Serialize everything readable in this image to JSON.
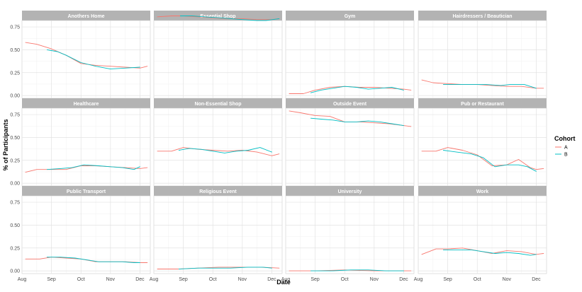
{
  "chart_data": {
    "type": "line",
    "xlabel": "Date",
    "ylabel": "% of Participants",
    "x_ticks": [
      "Aug",
      "Sep",
      "Oct",
      "Nov",
      "Dec"
    ],
    "y_ticks": [
      "0.00",
      "0.25",
      "0.50",
      "0.75"
    ],
    "ylim": [
      -0.03,
      0.82
    ],
    "xlim": [
      0,
      4.35
    ],
    "grid": true,
    "legend": {
      "title": "Cohort",
      "placement": "right",
      "entries": [
        {
          "name": "A",
          "color": "#F8766D"
        },
        {
          "name": "B",
          "color": "#00BFC4"
        }
      ]
    },
    "panels": [
      {
        "title": "Anothers Home",
        "series": [
          {
            "name": "A",
            "points": [
              [
                0.12,
                0.58
              ],
              [
                0.5,
                0.56
              ],
              [
                1.0,
                0.51
              ],
              [
                1.5,
                0.44
              ],
              [
                2.0,
                0.35
              ],
              [
                2.5,
                0.33
              ],
              [
                3.0,
                0.32
              ],
              [
                3.5,
                0.31
              ],
              [
                4.0,
                0.3
              ],
              [
                4.25,
                0.32
              ]
            ]
          },
          {
            "name": "B",
            "points": [
              [
                0.85,
                0.5
              ],
              [
                1.2,
                0.48
              ],
              [
                1.5,
                0.44
              ],
              [
                2.0,
                0.36
              ],
              [
                2.5,
                0.32
              ],
              [
                3.0,
                0.29
              ],
              [
                3.5,
                0.3
              ],
              [
                4.0,
                0.31
              ]
            ]
          }
        ]
      },
      {
        "title": "Essential Shop",
        "series": [
          {
            "name": "A",
            "points": [
              [
                0.12,
                0.86
              ],
              [
                0.6,
                0.87
              ],
              [
                1.0,
                0.87
              ],
              [
                1.5,
                0.86
              ],
              [
                2.0,
                0.85
              ],
              [
                2.5,
                0.84
              ],
              [
                3.0,
                0.84
              ],
              [
                3.5,
                0.83
              ],
              [
                4.0,
                0.83
              ],
              [
                4.25,
                0.84
              ]
            ]
          },
          {
            "name": "B",
            "points": [
              [
                0.9,
                0.87
              ],
              [
                1.3,
                0.87
              ],
              [
                1.7,
                0.86
              ],
              [
                2.2,
                0.85
              ],
              [
                2.6,
                0.84
              ],
              [
                3.0,
                0.83
              ],
              [
                3.5,
                0.82
              ],
              [
                3.8,
                0.82
              ],
              [
                4.25,
                0.84
              ]
            ]
          }
        ]
      },
      {
        "title": "Gym",
        "series": [
          {
            "name": "A",
            "points": [
              [
                0.12,
                0.02
              ],
              [
                0.6,
                0.02
              ],
              [
                1.0,
                0.06
              ],
              [
                1.5,
                0.09
              ],
              [
                2.0,
                0.1
              ],
              [
                2.5,
                0.09
              ],
              [
                3.0,
                0.09
              ],
              [
                3.5,
                0.08
              ],
              [
                4.0,
                0.07
              ],
              [
                4.25,
                0.06
              ]
            ]
          },
          {
            "name": "B",
            "points": [
              [
                0.85,
                0.03
              ],
              [
                1.2,
                0.06
              ],
              [
                1.6,
                0.08
              ],
              [
                2.0,
                0.1
              ],
              [
                2.4,
                0.09
              ],
              [
                2.8,
                0.07
              ],
              [
                3.2,
                0.08
              ],
              [
                3.6,
                0.09
              ],
              [
                4.0,
                0.06
              ]
            ]
          }
        ]
      },
      {
        "title": "Hairdressers / Beautician",
        "series": [
          {
            "name": "A",
            "points": [
              [
                0.12,
                0.17
              ],
              [
                0.5,
                0.14
              ],
              [
                1.0,
                0.13
              ],
              [
                1.5,
                0.12
              ],
              [
                2.0,
                0.12
              ],
              [
                2.5,
                0.11
              ],
              [
                3.0,
                0.1
              ],
              [
                3.5,
                0.1
              ],
              [
                4.0,
                0.08
              ],
              [
                4.25,
                0.08
              ]
            ]
          },
          {
            "name": "B",
            "points": [
              [
                0.85,
                0.12
              ],
              [
                1.3,
                0.12
              ],
              [
                1.8,
                0.12
              ],
              [
                2.3,
                0.12
              ],
              [
                2.8,
                0.11
              ],
              [
                3.1,
                0.12
              ],
              [
                3.6,
                0.12
              ],
              [
                4.0,
                0.08
              ]
            ]
          }
        ]
      },
      {
        "title": "Healthcare",
        "series": [
          {
            "name": "A",
            "points": [
              [
                0.12,
                0.12
              ],
              [
                0.5,
                0.15
              ],
              [
                1.0,
                0.15
              ],
              [
                1.5,
                0.15
              ],
              [
                2.0,
                0.19
              ],
              [
                2.5,
                0.19
              ],
              [
                3.0,
                0.18
              ],
              [
                3.5,
                0.17
              ],
              [
                4.0,
                0.16
              ],
              [
                4.25,
                0.17
              ]
            ]
          },
          {
            "name": "B",
            "points": [
              [
                0.85,
                0.15
              ],
              [
                1.3,
                0.16
              ],
              [
                1.7,
                0.17
              ],
              [
                2.1,
                0.2
              ],
              [
                2.6,
                0.19
              ],
              [
                3.0,
                0.18
              ],
              [
                3.4,
                0.17
              ],
              [
                3.8,
                0.15
              ],
              [
                4.0,
                0.18
              ]
            ]
          }
        ]
      },
      {
        "title": "Non-Essential Shop",
        "series": [
          {
            "name": "A",
            "points": [
              [
                0.12,
                0.35
              ],
              [
                0.6,
                0.35
              ],
              [
                1.0,
                0.39
              ],
              [
                1.5,
                0.37
              ],
              [
                2.0,
                0.36
              ],
              [
                2.5,
                0.35
              ],
              [
                3.0,
                0.36
              ],
              [
                3.5,
                0.34
              ],
              [
                4.0,
                0.3
              ],
              [
                4.25,
                0.32
              ]
            ]
          },
          {
            "name": "B",
            "points": [
              [
                0.85,
                0.36
              ],
              [
                1.2,
                0.38
              ],
              [
                1.6,
                0.37
              ],
              [
                2.0,
                0.35
              ],
              [
                2.4,
                0.33
              ],
              [
                2.8,
                0.35
              ],
              [
                3.2,
                0.36
              ],
              [
                3.6,
                0.39
              ],
              [
                4.0,
                0.34
              ]
            ]
          }
        ]
      },
      {
        "title": "Outside Event",
        "series": [
          {
            "name": "A",
            "points": [
              [
                0.12,
                0.79
              ],
              [
                0.5,
                0.77
              ],
              [
                1.0,
                0.74
              ],
              [
                1.5,
                0.73
              ],
              [
                2.0,
                0.67
              ],
              [
                2.5,
                0.67
              ],
              [
                3.0,
                0.66
              ],
              [
                3.5,
                0.65
              ],
              [
                4.0,
                0.63
              ],
              [
                4.25,
                0.62
              ]
            ]
          },
          {
            "name": "B",
            "points": [
              [
                0.85,
                0.71
              ],
              [
                1.2,
                0.7
              ],
              [
                1.6,
                0.69
              ],
              [
                2.0,
                0.67
              ],
              [
                2.4,
                0.67
              ],
              [
                2.8,
                0.68
              ],
              [
                3.2,
                0.67
              ],
              [
                3.6,
                0.65
              ],
              [
                4.0,
                0.63
              ]
            ]
          }
        ]
      },
      {
        "title": "Pub or Restaurant",
        "series": [
          {
            "name": "A",
            "points": [
              [
                0.12,
                0.35
              ],
              [
                0.6,
                0.35
              ],
              [
                1.0,
                0.39
              ],
              [
                1.5,
                0.36
              ],
              [
                2.0,
                0.31
              ],
              [
                2.5,
                0.19
              ],
              [
                3.0,
                0.2
              ],
              [
                3.4,
                0.26
              ],
              [
                3.8,
                0.17
              ],
              [
                4.0,
                0.15
              ],
              [
                4.25,
                0.16
              ]
            ]
          },
          {
            "name": "B",
            "points": [
              [
                0.85,
                0.36
              ],
              [
                1.3,
                0.34
              ],
              [
                1.8,
                0.32
              ],
              [
                2.2,
                0.28
              ],
              [
                2.6,
                0.18
              ],
              [
                3.0,
                0.2
              ],
              [
                3.4,
                0.2
              ],
              [
                3.7,
                0.18
              ],
              [
                4.0,
                0.13
              ]
            ]
          }
        ]
      },
      {
        "title": "Public Transport",
        "series": [
          {
            "name": "A",
            "points": [
              [
                0.12,
                0.13
              ],
              [
                0.6,
                0.13
              ],
              [
                1.0,
                0.15
              ],
              [
                1.5,
                0.14
              ],
              [
                2.0,
                0.13
              ],
              [
                2.5,
                0.1
              ],
              [
                3.0,
                0.1
              ],
              [
                3.5,
                0.1
              ],
              [
                4.0,
                0.09
              ],
              [
                4.25,
                0.09
              ]
            ]
          },
          {
            "name": "B",
            "points": [
              [
                0.85,
                0.15
              ],
              [
                1.3,
                0.15
              ],
              [
                1.8,
                0.14
              ],
              [
                2.2,
                0.12
              ],
              [
                2.6,
                0.1
              ],
              [
                3.0,
                0.1
              ],
              [
                3.4,
                0.1
              ],
              [
                3.8,
                0.09
              ],
              [
                4.0,
                0.09
              ]
            ]
          }
        ]
      },
      {
        "title": "Religious Event",
        "series": [
          {
            "name": "A",
            "points": [
              [
                0.12,
                0.02
              ],
              [
                0.8,
                0.02
              ],
              [
                1.5,
                0.03
              ],
              [
                2.2,
                0.04
              ],
              [
                3.0,
                0.04
              ],
              [
                3.6,
                0.04
              ],
              [
                4.25,
                0.03
              ]
            ]
          },
          {
            "name": "B",
            "points": [
              [
                0.85,
                0.02
              ],
              [
                1.5,
                0.03
              ],
              [
                2.0,
                0.03
              ],
              [
                2.6,
                0.03
              ],
              [
                3.2,
                0.04
              ],
              [
                3.7,
                0.04
              ],
              [
                4.0,
                0.03
              ]
            ]
          }
        ]
      },
      {
        "title": "University",
        "series": [
          {
            "name": "A",
            "points": [
              [
                0.12,
                0.0
              ],
              [
                1.0,
                0.0
              ],
              [
                2.0,
                0.01
              ],
              [
                3.0,
                0.0
              ],
              [
                3.6,
                0.0
              ],
              [
                4.25,
                0.0
              ]
            ]
          },
          {
            "name": "B",
            "points": [
              [
                0.85,
                0.0
              ],
              [
                1.6,
                0.0
              ],
              [
                2.2,
                0.01
              ],
              [
                2.8,
                0.01
              ],
              [
                3.4,
                0.0
              ],
              [
                4.0,
                0.0
              ]
            ]
          }
        ]
      },
      {
        "title": "Work",
        "series": [
          {
            "name": "A",
            "points": [
              [
                0.12,
                0.18
              ],
              [
                0.6,
                0.24
              ],
              [
                1.0,
                0.24
              ],
              [
                1.5,
                0.25
              ],
              [
                2.0,
                0.22
              ],
              [
                2.5,
                0.19
              ],
              [
                3.0,
                0.22
              ],
              [
                3.5,
                0.21
              ],
              [
                4.0,
                0.18
              ],
              [
                4.25,
                0.19
              ]
            ]
          },
          {
            "name": "B",
            "points": [
              [
                0.85,
                0.23
              ],
              [
                1.3,
                0.23
              ],
              [
                1.8,
                0.23
              ],
              [
                2.2,
                0.21
              ],
              [
                2.6,
                0.19
              ],
              [
                3.0,
                0.2
              ],
              [
                3.4,
                0.19
              ],
              [
                3.8,
                0.17
              ],
              [
                4.0,
                0.18
              ]
            ]
          }
        ]
      }
    ]
  }
}
